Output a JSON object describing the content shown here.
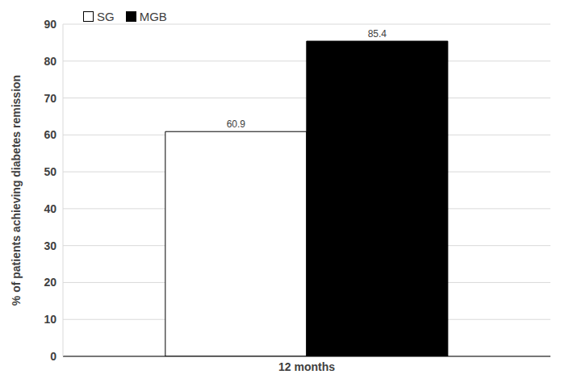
{
  "chart_data": {
    "type": "bar",
    "categories": [
      "12 months"
    ],
    "series": [
      {
        "name": "SG",
        "color": "#ffffff",
        "values": [
          60.9
        ]
      },
      {
        "name": "MGB",
        "color": "#000000",
        "values": [
          85.4
        ]
      }
    ],
    "y_label": "% of patients achieving diabetes remission",
    "ylim": [
      0,
      90
    ],
    "yticks": [
      0,
      10,
      20,
      30,
      40,
      50,
      60,
      70,
      80,
      90
    ],
    "grid": true,
    "legend": "upper left",
    "data_labels": true
  }
}
